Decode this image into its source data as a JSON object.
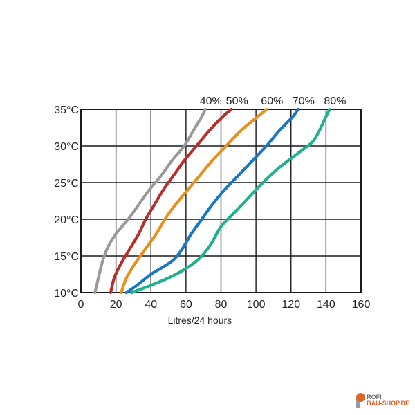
{
  "chart_data": {
    "type": "line",
    "title": "",
    "xlabel": "Litres/24 hours",
    "ylabel": "",
    "xlim": [
      0,
      160
    ],
    "ylim": [
      10,
      35
    ],
    "x_ticks": [
      0,
      20,
      40,
      60,
      80,
      100,
      120,
      140,
      160
    ],
    "y_ticks": [
      10,
      15,
      20,
      25,
      30,
      35
    ],
    "y_tick_format": "°C",
    "grid": true,
    "series": [
      {
        "name": "40%",
        "color": "#999999",
        "points": [
          [
            8,
            10
          ],
          [
            10,
            12
          ],
          [
            12,
            14
          ],
          [
            15,
            16
          ],
          [
            20,
            18
          ],
          [
            27,
            20
          ],
          [
            33,
            22
          ],
          [
            39,
            24
          ],
          [
            46,
            26
          ],
          [
            52,
            28
          ],
          [
            59,
            30
          ],
          [
            64,
            32
          ],
          [
            69,
            34
          ],
          [
            71,
            35
          ]
        ]
      },
      {
        "name": "50%",
        "color": "#b5302a",
        "points": [
          [
            17,
            10
          ],
          [
            19,
            12
          ],
          [
            23,
            14
          ],
          [
            28,
            16
          ],
          [
            33,
            18
          ],
          [
            37,
            20
          ],
          [
            42,
            22
          ],
          [
            47,
            24
          ],
          [
            53,
            26
          ],
          [
            59,
            28
          ],
          [
            66,
            30
          ],
          [
            73,
            32
          ],
          [
            81,
            34
          ],
          [
            86,
            35
          ]
        ]
      },
      {
        "name": "60%",
        "color": "#e5901f",
        "points": [
          [
            23,
            10
          ],
          [
            26,
            12
          ],
          [
            31,
            14
          ],
          [
            37,
            16
          ],
          [
            43,
            18
          ],
          [
            48,
            20
          ],
          [
            54,
            22
          ],
          [
            61,
            24
          ],
          [
            68,
            26
          ],
          [
            75,
            28
          ],
          [
            83,
            30
          ],
          [
            91,
            32
          ],
          [
            101,
            34
          ],
          [
            106,
            35
          ]
        ]
      },
      {
        "name": "70%",
        "color": "#1a77c2",
        "points": [
          [
            26,
            10
          ],
          [
            32,
            11
          ],
          [
            40,
            12.5
          ],
          [
            47,
            13.5
          ],
          [
            53,
            14.5
          ],
          [
            58,
            16
          ],
          [
            63,
            18
          ],
          [
            69,
            20
          ],
          [
            75,
            22
          ],
          [
            82,
            24
          ],
          [
            90,
            26
          ],
          [
            98,
            28
          ],
          [
            106,
            30
          ],
          [
            113,
            32
          ],
          [
            121,
            34
          ],
          [
            124,
            35
          ]
        ]
      },
      {
        "name": "80%",
        "color": "#1fb08f",
        "points": [
          [
            29,
            10
          ],
          [
            40,
            11
          ],
          [
            50,
            12
          ],
          [
            58,
            13
          ],
          [
            67,
            14.5
          ],
          [
            74,
            16.5
          ],
          [
            80,
            19
          ],
          [
            88,
            21
          ],
          [
            96,
            23
          ],
          [
            104,
            25
          ],
          [
            113,
            27
          ],
          [
            124,
            29
          ],
          [
            132,
            30.5
          ],
          [
            136,
            32
          ],
          [
            140,
            34
          ],
          [
            142,
            35
          ]
        ]
      }
    ]
  },
  "logo": {
    "line1": "ROFI",
    "line2": "BAU-SHOP.DE"
  }
}
